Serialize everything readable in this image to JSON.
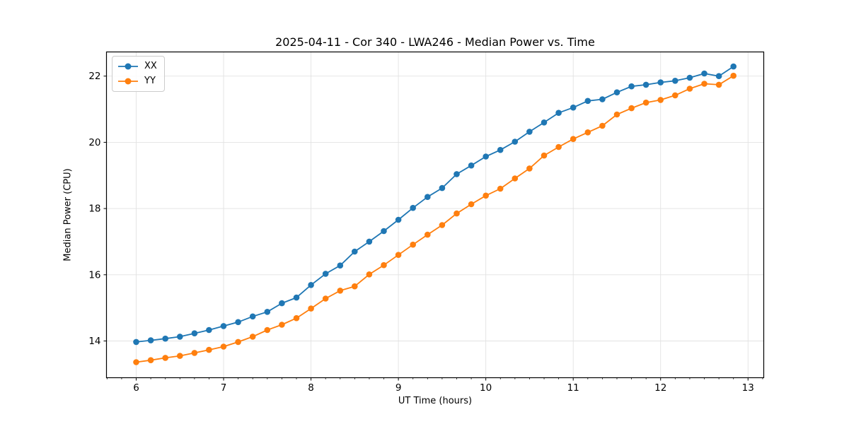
{
  "chart_data": {
    "type": "line",
    "title": "2025-04-11 - Cor 340 - LWA246 - Median Power vs. Time",
    "xlabel": "UT Time (hours)",
    "ylabel": "Median Power (CPU)",
    "xlim": [
      5.66,
      13.18
    ],
    "ylim": [
      12.89,
      22.73
    ],
    "x_ticks": [
      6,
      7,
      8,
      9,
      10,
      11,
      12,
      13
    ],
    "y_ticks": [
      14,
      16,
      18,
      20,
      22
    ],
    "x_minor_tick_step": 0.16667,
    "grid": true,
    "grid_color": "#e2e2e2",
    "spine_color": "#000000",
    "legend_position": "upper left",
    "marker": "circle",
    "x": [
      6.0,
      6.1667,
      6.3333,
      6.5,
      6.6667,
      6.8333,
      7.0,
      7.1667,
      7.3333,
      7.5,
      7.6667,
      7.8333,
      8.0,
      8.1667,
      8.3333,
      8.5,
      8.6667,
      8.8333,
      9.0,
      9.1667,
      9.3333,
      9.5,
      9.6667,
      9.8333,
      10.0,
      10.1667,
      10.3333,
      10.5,
      10.6667,
      10.8333,
      11.0,
      11.1667,
      11.3333,
      11.5,
      11.6667,
      11.8333,
      12.0,
      12.1667,
      12.3333,
      12.5,
      12.6667,
      12.8333
    ],
    "series": [
      {
        "name": "XX",
        "color": "#1f77b4",
        "values": [
          13.97,
          14.02,
          14.07,
          14.13,
          14.23,
          14.33,
          14.45,
          14.57,
          14.74,
          14.88,
          15.14,
          15.31,
          15.69,
          16.03,
          16.28,
          16.7,
          17.0,
          17.32,
          17.66,
          18.02,
          18.35,
          18.62,
          19.04,
          19.3,
          19.57,
          19.77,
          20.02,
          20.32,
          20.6,
          20.89,
          21.05,
          21.25,
          21.3,
          21.51,
          21.69,
          21.74,
          21.81,
          21.86,
          21.95,
          22.08,
          22.0,
          22.29
        ]
      },
      {
        "name": "YY",
        "color": "#ff7f0e",
        "values": [
          13.36,
          13.42,
          13.49,
          13.55,
          13.64,
          13.73,
          13.83,
          13.97,
          14.13,
          14.33,
          14.49,
          14.69,
          14.98,
          15.28,
          15.52,
          15.65,
          16.01,
          16.29,
          16.6,
          16.91,
          17.21,
          17.5,
          17.85,
          18.13,
          18.39,
          18.6,
          18.91,
          19.21,
          19.6,
          19.86,
          20.1,
          20.3,
          20.5,
          20.84,
          21.03,
          21.2,
          21.28,
          21.42,
          21.62,
          21.77,
          21.74,
          22.01
        ]
      }
    ]
  }
}
